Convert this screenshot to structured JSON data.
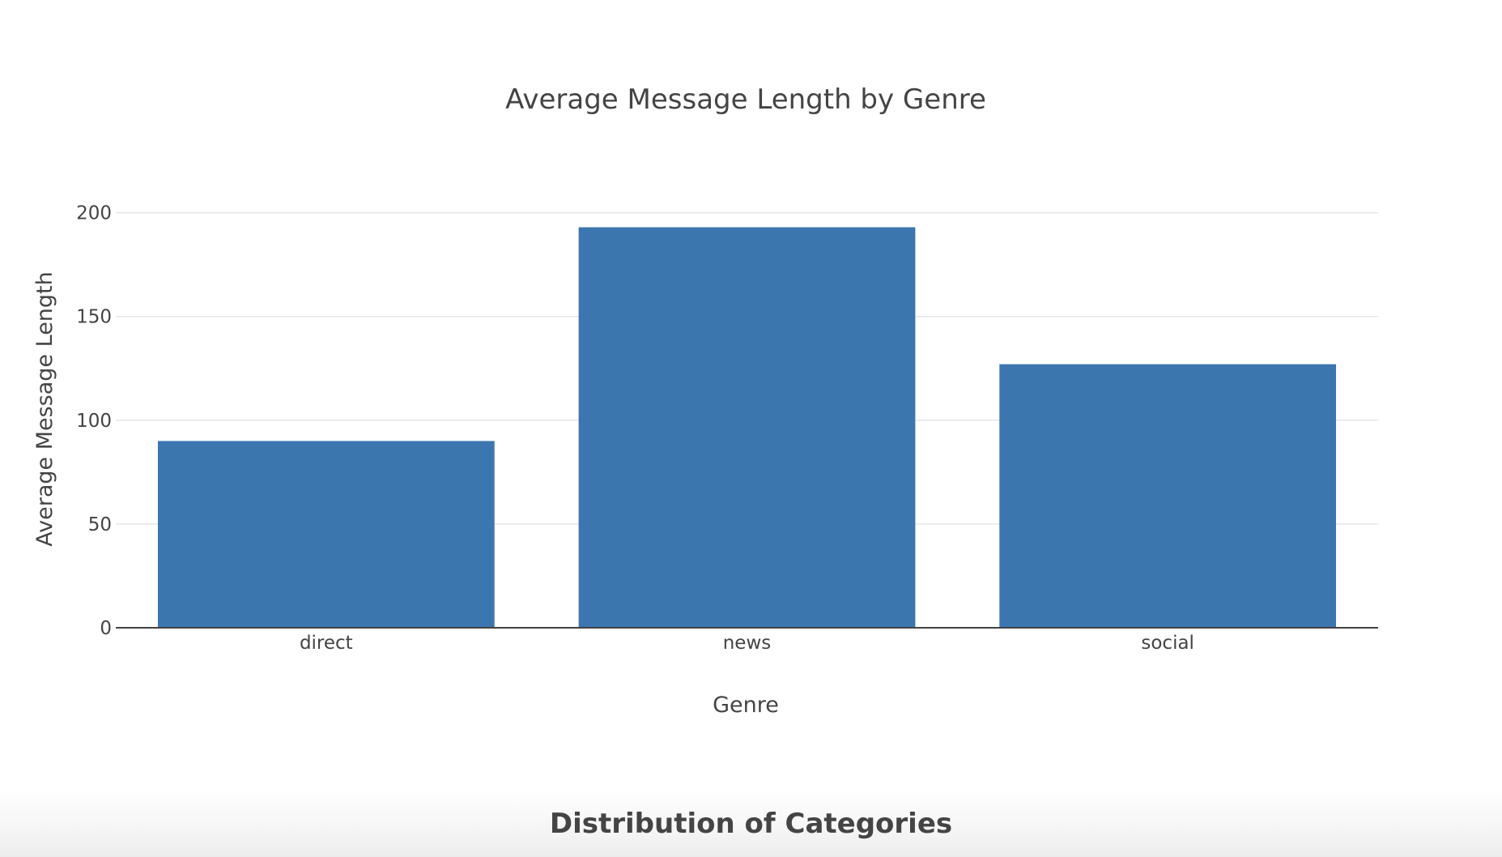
{
  "chart_data": {
    "type": "bar",
    "title": "Average Message Length by Genre",
    "xlabel": "Genre",
    "ylabel": "Average Message Length",
    "categories": [
      "direct",
      "news",
      "social"
    ],
    "values": [
      90,
      193,
      127
    ],
    "ylim": [
      0,
      210
    ],
    "yticks": [
      0,
      50,
      100,
      150,
      200
    ],
    "grid": true,
    "bar_color": "#3b76af",
    "grid_color": "#e6e6e6",
    "axis_color": "#444444"
  },
  "next_chart": {
    "title": "Distribution of Categories"
  }
}
